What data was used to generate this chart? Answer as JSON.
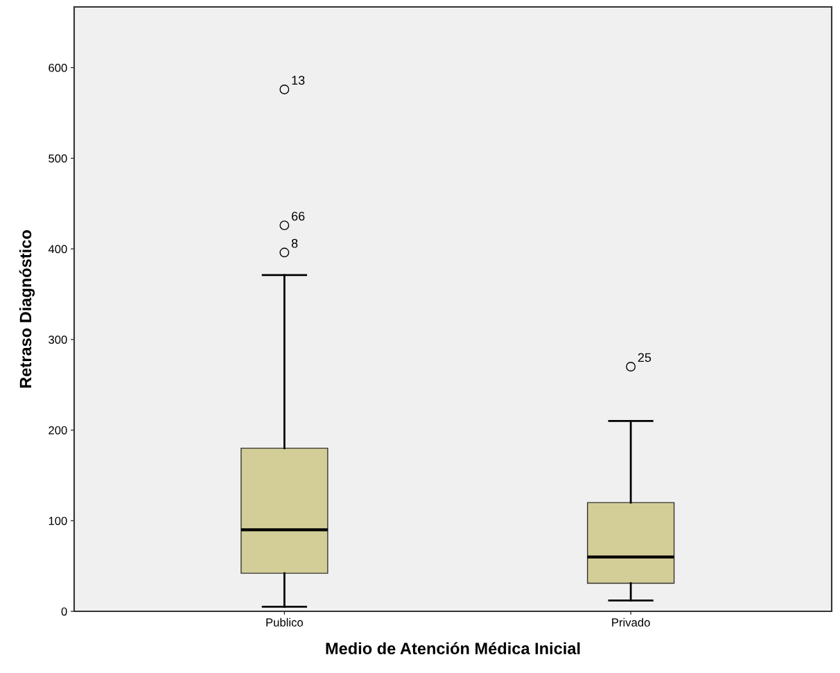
{
  "chart_data": {
    "type": "box",
    "xlabel": "Medio de Atención Médica Inicial",
    "ylabel": "Retraso Diagnóstico",
    "categories": [
      "Publico",
      "Privado"
    ],
    "boxes": [
      {
        "low": 5,
        "q1": 42,
        "median": 90,
        "q3": 180,
        "high": 371,
        "outliers": [
          576,
          426,
          396
        ]
      },
      {
        "low": 12,
        "q1": 31,
        "median": 60,
        "q3": 120,
        "high": 210,
        "outliers": [
          270
        ]
      }
    ],
    "color": "#d3ce97",
    "ylim": [
      0,
      667
    ],
    "yticks": [
      0,
      100,
      200,
      300,
      400,
      500,
      600
    ],
    "grid": false,
    "annotations": [
      "13",
      "66",
      "8",
      "25"
    ]
  }
}
